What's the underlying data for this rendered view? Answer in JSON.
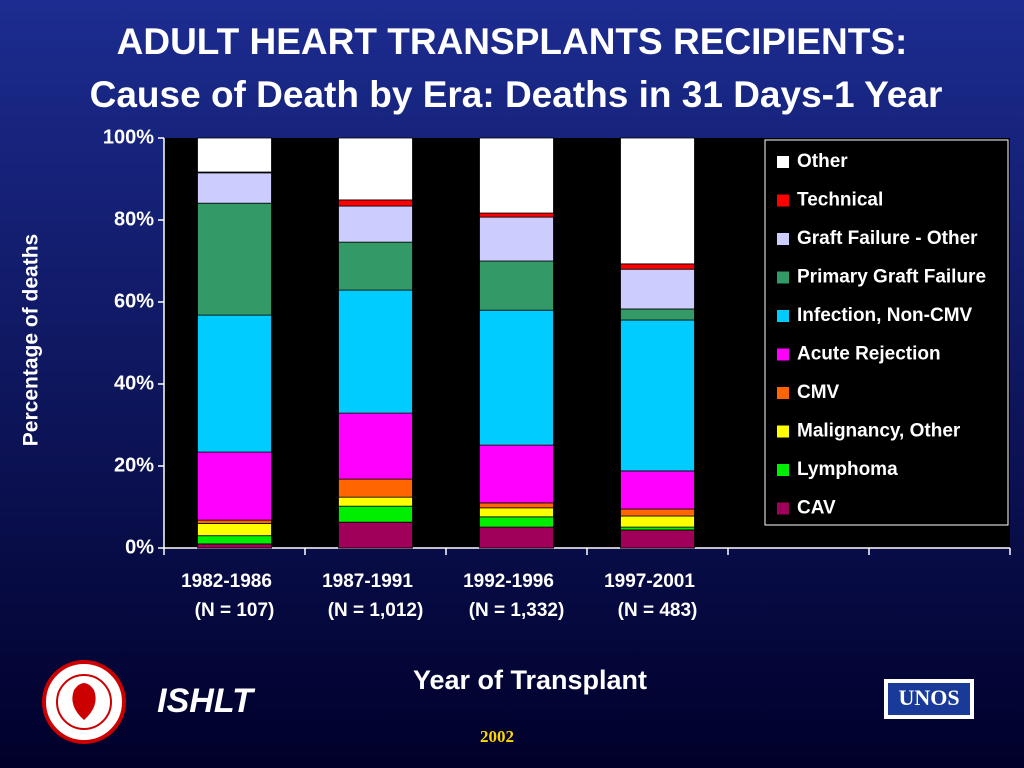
{
  "chart_data": {
    "type": "stacked_bar",
    "title": "ADULT HEART TRANSPLANTS RECIPIENTS:",
    "subtitle": "Cause of Death by Era: Deaths in 31 Days-1 Year",
    "y_label": "Percentage of deaths",
    "x_label": "Year of Transplant",
    "categories": [
      "1982-1986",
      "1987-1991",
      "1992-1996",
      "1997-2001",
      null,
      null
    ],
    "category_notes": [
      "(N = 107)",
      "(N = 1,012)",
      "(N = 1,332)",
      "(N = 483)",
      null,
      null
    ],
    "series": [
      {
        "name": "CAV",
        "color": "#a0005a",
        "values": [
          1,
          6.3,
          5.1,
          4.4,
          null,
          null
        ]
      },
      {
        "name": "Lymphoma",
        "color": "#00ee00",
        "values": [
          2,
          3.9,
          2.5,
          0.7,
          null,
          null
        ]
      },
      {
        "name": "Malignancy, Other",
        "color": "#ffff00",
        "values": [
          3,
          2.2,
          2.2,
          2.7,
          null,
          null
        ]
      },
      {
        "name": "CMV",
        "color": "#ff6600",
        "values": [
          0.8,
          4.4,
          1.2,
          1.7,
          null,
          null
        ]
      },
      {
        "name": "Acute Rejection",
        "color": "#ff00ff",
        "values": [
          16.6,
          16.1,
          14.1,
          9.3,
          null,
          null
        ]
      },
      {
        "name": "Infection, Non-CMV",
        "color": "#00ccff",
        "values": [
          33.4,
          30,
          32.9,
          36.8,
          null,
          null
        ]
      },
      {
        "name": "Primary Graft Failure",
        "color": "#339966",
        "values": [
          27.3,
          11.7,
          12,
          2.7,
          null,
          null
        ]
      },
      {
        "name": "Graft Failure - Other",
        "color": "#ccccff",
        "values": [
          7.4,
          8.8,
          10.7,
          9.7,
          null,
          null
        ]
      },
      {
        "name": "Technical",
        "color": "#ff0000",
        "values": [
          0.2,
          1.5,
          1,
          1.3,
          null,
          null
        ]
      },
      {
        "name": "Other",
        "color": "#ffffff",
        "values": [
          8.3,
          15.1,
          18.3,
          30.7,
          null,
          null
        ]
      }
    ],
    "ylim": [
      0,
      100
    ],
    "yticks": [
      {
        "value": 0,
        "label": "0%"
      },
      {
        "value": 20,
        "label": "20%"
      },
      {
        "value": 40,
        "label": "40%"
      },
      {
        "value": 60,
        "label": "60%"
      },
      {
        "value": 80,
        "label": "80%"
      },
      {
        "value": 100,
        "label": "100%"
      }
    ],
    "legend": "upper right"
  },
  "footer": {
    "society": "ISHLT",
    "year": "2002",
    "partner": "UNOS"
  }
}
